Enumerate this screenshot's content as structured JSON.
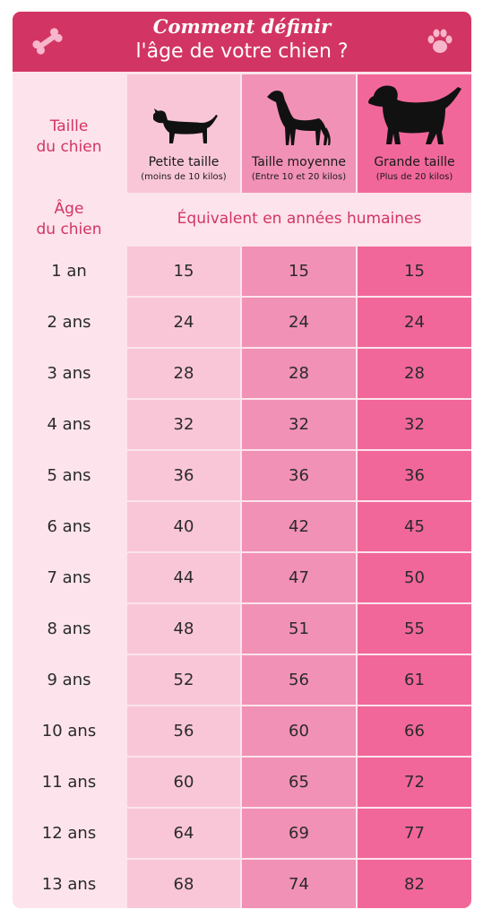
{
  "header": {
    "title_line1": "Comment définir",
    "title_line2": "l'âge de votre chien ?",
    "left_icon": "bone-icon",
    "right_icon": "paw-icon"
  },
  "colors": {
    "banner": "#d23563",
    "label_text": "#d23563",
    "col_labels": "#fde3ec",
    "col_small": "#f9c6d8",
    "col_medium": "#f191b5",
    "col_large": "#f2679a"
  },
  "table": {
    "size_label": "Taille\ndu chien",
    "age_label": "Âge\ndu chien",
    "equivalent_label": "Équivalent en années humaines",
    "columns": [
      {
        "name": "Petite taille",
        "sub": "(moins de 10 kilos)",
        "icon": "small-dog-icon"
      },
      {
        "name": "Taille moyenne",
        "sub": "(Entre 10 et 20 kilos)",
        "icon": "medium-dog-icon"
      },
      {
        "name": "Grande taille",
        "sub": "(Plus de 20 kilos)",
        "icon": "large-dog-icon"
      }
    ],
    "rows": [
      {
        "age": "1 an",
        "values": [
          "15",
          "15",
          "15"
        ]
      },
      {
        "age": "2 ans",
        "values": [
          "24",
          "24",
          "24"
        ]
      },
      {
        "age": "3 ans",
        "values": [
          "28",
          "28",
          "28"
        ]
      },
      {
        "age": "4 ans",
        "values": [
          "32",
          "32",
          "32"
        ]
      },
      {
        "age": "5 ans",
        "values": [
          "36",
          "36",
          "36"
        ]
      },
      {
        "age": "6 ans",
        "values": [
          "40",
          "42",
          "45"
        ]
      },
      {
        "age": "7 ans",
        "values": [
          "44",
          "47",
          "50"
        ]
      },
      {
        "age": "8 ans",
        "values": [
          "48",
          "51",
          "55"
        ]
      },
      {
        "age": "9 ans",
        "values": [
          "52",
          "56",
          "61"
        ]
      },
      {
        "age": "10 ans",
        "values": [
          "56",
          "60",
          "66"
        ]
      },
      {
        "age": "11 ans",
        "values": [
          "60",
          "65",
          "72"
        ]
      },
      {
        "age": "12 ans",
        "values": [
          "64",
          "69",
          "77"
        ]
      },
      {
        "age": "13 ans",
        "values": [
          "68",
          "74",
          "82"
        ]
      }
    ]
  }
}
